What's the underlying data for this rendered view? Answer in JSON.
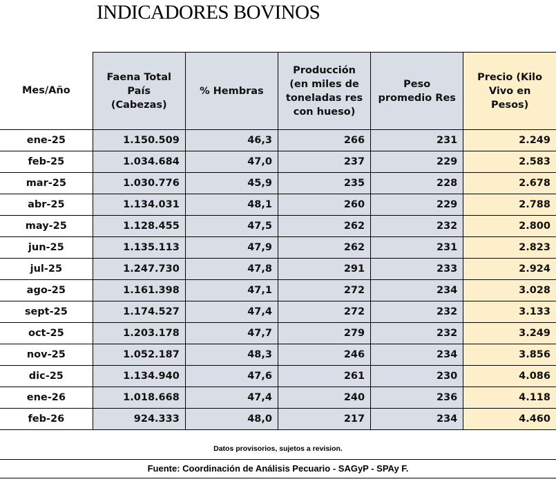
{
  "title": "INDICADORES BOVINOS",
  "headers": [
    "Mes/Año",
    "Faena Total País (Cabezas)",
    "% Hembras",
    "Producción (en miles de toneladas res con hueso)",
    "Peso promedio Res",
    "Precio (Kilo Vivo en Pesos)"
  ],
  "rows": [
    [
      "ene-25",
      "1.150.509",
      "46,3",
      "266",
      "231",
      "2.249"
    ],
    [
      "feb-25",
      "1.034.684",
      "47,0",
      "237",
      "229",
      "2.583"
    ],
    [
      "mar-25",
      "1.030.776",
      "45,9",
      "235",
      "228",
      "2.678"
    ],
    [
      "abr-25",
      "1.134.031",
      "48,1",
      "260",
      "229",
      "2.788"
    ],
    [
      "may-25",
      "1.128.455",
      "47,5",
      "262",
      "232",
      "2.800"
    ],
    [
      "jun-25",
      "1.135.113",
      "47,9",
      "262",
      "231",
      "2.823"
    ],
    [
      "jul-25",
      "1.247.730",
      "47,8",
      "291",
      "233",
      "2.924"
    ],
    [
      "ago-25",
      "1.161.398",
      "47,1",
      "272",
      "234",
      "3.028"
    ],
    [
      "sept-25",
      "1.174.527",
      "47,4",
      "272",
      "232",
      "3.133"
    ],
    [
      "oct-25",
      "1.203.178",
      "47,7",
      "279",
      "232",
      "3.249"
    ],
    [
      "nov-25",
      "1.052.187",
      "48,3",
      "246",
      "234",
      "3.856"
    ],
    [
      "dic-25",
      "1.134.940",
      "47,6",
      "261",
      "230",
      "4.086"
    ],
    [
      "ene-26",
      "1.018.668",
      "47,4",
      "240",
      "236",
      "4.118"
    ],
    [
      "feb-26",
      "924.333",
      "48,0",
      "217",
      "234",
      "4.460"
    ]
  ],
  "note": "Datos provisorios, sujetos a revision.",
  "source": "Fuente: Coordinación de Análisis Pecuario - SAGyP - SPAy F."
}
